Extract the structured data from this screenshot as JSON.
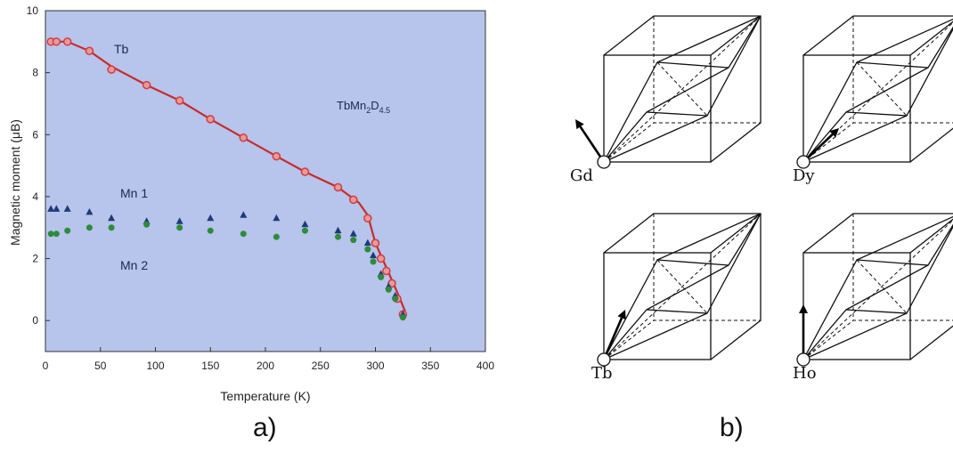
{
  "panels": {
    "a_label": "a)",
    "b_label": "b)"
  },
  "chart_data": {
    "type": "scatter",
    "xlabel": "Temperature (K)",
    "ylabel": "Magnetic moment (μB)",
    "xlim": [
      0,
      400
    ],
    "ylim": [
      -1,
      10
    ],
    "xticks": [
      0,
      50,
      100,
      150,
      200,
      250,
      300,
      350,
      400
    ],
    "yticks": [
      0,
      2,
      4,
      6,
      8,
      10
    ],
    "grid": false,
    "annotations": {
      "compound_prefix": "TbMn",
      "compound_sub1": "2",
      "compound_mid": "D",
      "compound_sub2": "4.5",
      "tb": "Tb",
      "mn1": "Mn 1",
      "mn2": "Mn 2"
    },
    "series": [
      {
        "name": "Tb",
        "marker": "circle",
        "color": "#d33c3c",
        "x": [
          5,
          10,
          20,
          40,
          60,
          92,
          122,
          150,
          180,
          210,
          236,
          266,
          280,
          293,
          300,
          305,
          310,
          315,
          320,
          325
        ],
        "y": [
          9.0,
          9.0,
          9.0,
          8.7,
          8.1,
          7.6,
          7.1,
          6.5,
          5.9,
          5.3,
          4.8,
          4.3,
          3.9,
          3.3,
          2.5,
          2.0,
          1.6,
          1.2,
          0.7,
          0.2
        ]
      },
      {
        "name": "Mn 1",
        "marker": "triangle",
        "color": "#1f3a7a",
        "x": [
          5,
          10,
          20,
          40,
          60,
          92,
          122,
          150,
          180,
          210,
          236,
          266,
          280,
          293,
          298,
          305,
          312,
          318,
          325
        ],
        "y": [
          3.6,
          3.6,
          3.6,
          3.5,
          3.3,
          3.2,
          3.2,
          3.3,
          3.4,
          3.3,
          3.1,
          2.9,
          2.8,
          2.5,
          2.1,
          1.5,
          1.1,
          0.8,
          0.2
        ]
      },
      {
        "name": "Mn 2",
        "marker": "circle",
        "color": "#2e8b3a",
        "x": [
          5,
          10,
          20,
          40,
          60,
          92,
          122,
          150,
          180,
          210,
          236,
          266,
          280,
          293,
          298,
          305,
          312,
          318,
          325
        ],
        "y": [
          2.8,
          2.8,
          2.9,
          3.0,
          3.0,
          3.1,
          3.0,
          2.9,
          2.8,
          2.7,
          2.9,
          2.7,
          2.6,
          2.3,
          1.9,
          1.4,
          1.0,
          0.7,
          0.1
        ]
      }
    ],
    "fit_line": {
      "color": "#c72c2c",
      "x": [
        5,
        20,
        40,
        60,
        92,
        122,
        150,
        180,
        210,
        236,
        266,
        285,
        293,
        300,
        310,
        320,
        327
      ],
      "y": [
        9.0,
        9.0,
        8.7,
        8.2,
        7.6,
        7.1,
        6.5,
        5.9,
        5.3,
        4.8,
        4.3,
        3.8,
        3.4,
        2.5,
        1.7,
        0.9,
        0.3
      ]
    },
    "background": "#b7c4eb"
  },
  "panel_b": {
    "labels": [
      "Gd",
      "Dy",
      "Tb",
      "Ho"
    ]
  }
}
